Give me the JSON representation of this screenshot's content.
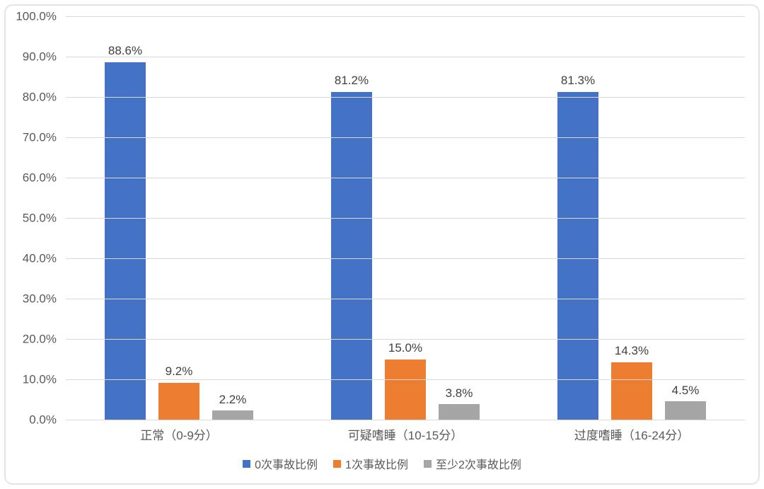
{
  "frame": {
    "background": "#ffffff",
    "border_color": "#e4e4e4"
  },
  "chart_data": {
    "type": "bar",
    "title": "",
    "xlabel": "",
    "ylabel": "",
    "categories": [
      "正常（0-9分）",
      "可疑嗜睡（10-15分）",
      "过度嗜睡（16-24分）"
    ],
    "series": [
      {
        "name": "0次事故比例",
        "color": "#4472C4",
        "values": [
          88.6,
          81.2,
          81.3
        ],
        "labels": [
          "88.6%",
          "81.2%",
          "81.3%"
        ]
      },
      {
        "name": "1次事故比例",
        "color": "#ED7D31",
        "values": [
          9.2,
          15.0,
          14.3
        ],
        "labels": [
          "9.2%",
          "15.0%",
          "14.3%"
        ]
      },
      {
        "name": "至少2次事故比例",
        "color": "#A5A5A5",
        "values": [
          2.2,
          3.8,
          4.5
        ],
        "labels": [
          "2.2%",
          "3.8%",
          "4.5%"
        ]
      }
    ],
    "ylim": [
      0,
      100
    ],
    "y_ticks": [
      "0.0%",
      "10.0%",
      "20.0%",
      "30.0%",
      "40.0%",
      "50.0%",
      "60.0%",
      "70.0%",
      "80.0%",
      "90.0%",
      "100.0%"
    ],
    "grid": true,
    "gridline_color": "#d9d9d9",
    "axis_text_color": "#595959",
    "value_label_color": "#404040",
    "legend_position": "bottom"
  }
}
